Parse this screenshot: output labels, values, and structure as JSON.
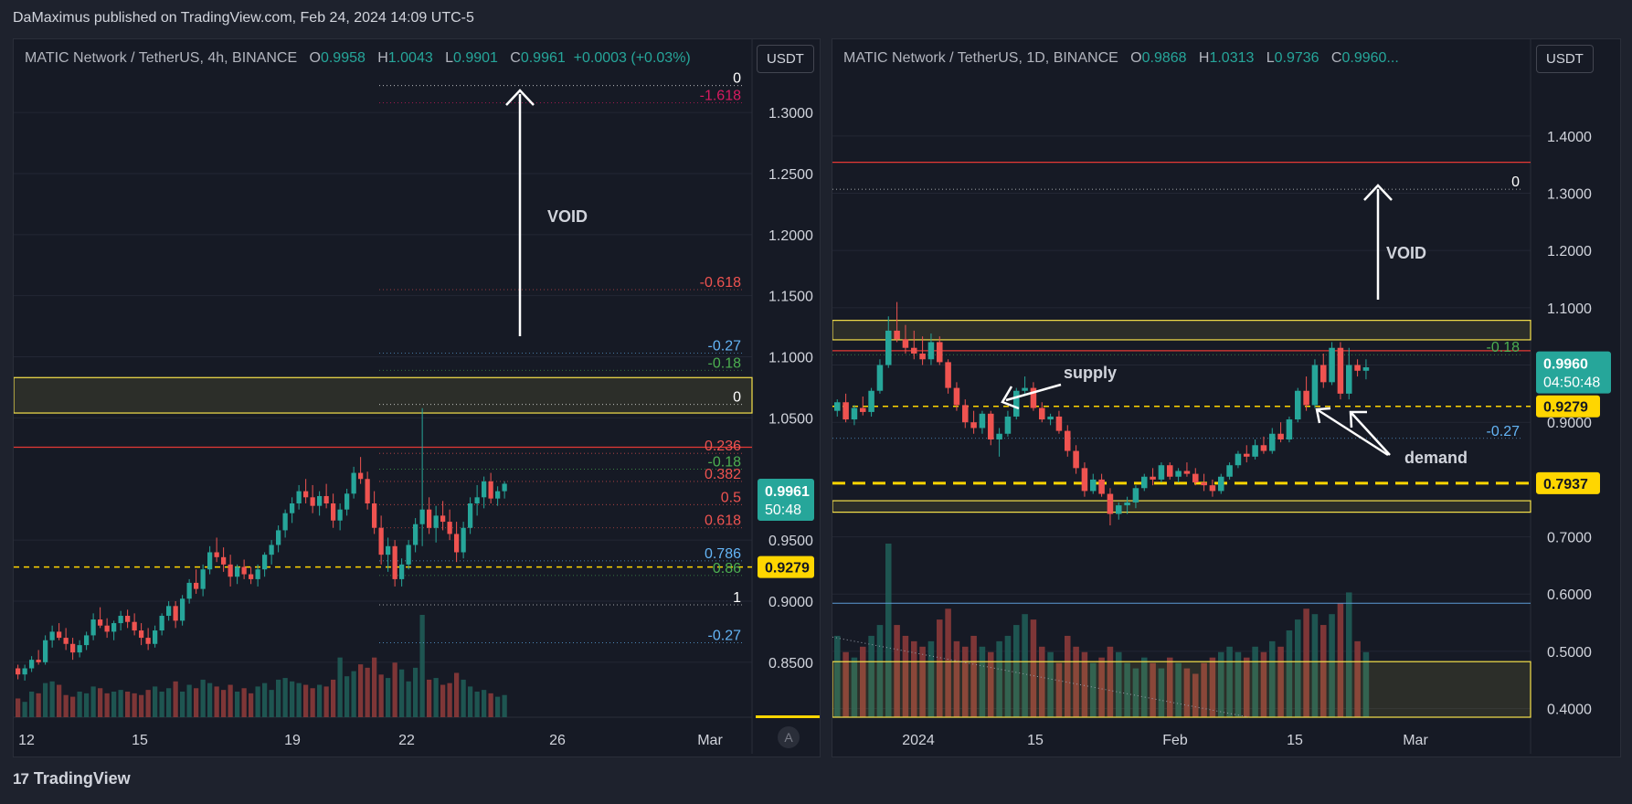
{
  "header": {
    "publisher": "DaMaximus published on TradingView.com, Feb 24, 2024 14:09 UTC-5"
  },
  "footer": {
    "brand": "TradingView",
    "logo_icon": "tradingview-logo-icon"
  },
  "colors": {
    "up": "#26a69a",
    "down": "#ef5350",
    "zone_line": "#f7e24b",
    "resistance": "#e53935",
    "dashed": "#ffd600",
    "bg": "#161a25"
  },
  "left": {
    "legend": {
      "symbol": "MATIC Network / TetherUS, 4h, BINANCE",
      "o_label": "O",
      "o": "0.9958",
      "h_label": "H",
      "h": "1.0043",
      "l_label": "L",
      "l": "0.9901",
      "c_label": "C",
      "c": "0.9961",
      "change": "+0.0003 (+0.03%)"
    },
    "currency": "USDT",
    "auto_label": "A",
    "price_tag": "0.9961",
    "price_timer": "50:48",
    "dashed_tag": "0.9279",
    "void_label": "VOID",
    "x_labels": [
      "12",
      "15",
      "19",
      "22",
      "26",
      "Mar"
    ],
    "chart_data": {
      "type": "candlestick",
      "timeframe": "4h",
      "ylim": [
        0.805,
        1.33
      ],
      "y_ticks": [
        "1.3000",
        "1.2500",
        "1.2000",
        "1.1500",
        "1.1000",
        "1.0500",
        "0.9500",
        "0.9000",
        "0.8500"
      ],
      "fib_levels": [
        {
          "label": "-1.618",
          "value": 1.308,
          "color": "#d81b60"
        },
        {
          "label": "0",
          "value": 1.322,
          "color": "#ffffff"
        },
        {
          "label": "-0.618",
          "value": 1.155,
          "color": "#ef5350"
        },
        {
          "label": "-0.27",
          "value": 1.103,
          "color": "#64b5f6"
        },
        {
          "label": "-0.18",
          "value": 1.089,
          "color": "#4caf50"
        },
        {
          "label": "0",
          "value": 1.061,
          "color": "#ffffff"
        },
        {
          "label": "0.236",
          "value": 1.021,
          "color": "#ef5350"
        },
        {
          "label": "-0.18",
          "value": 1.008,
          "color": "#4caf50"
        },
        {
          "label": "0.382",
          "value": 0.998,
          "color": "#ef5350"
        },
        {
          "label": "0.5",
          "value": 0.979,
          "color": "#ef5350"
        },
        {
          "label": "0.618",
          "value": 0.96,
          "color": "#ef5350"
        },
        {
          "label": "0.786",
          "value": 0.933,
          "color": "#64b5f6"
        },
        {
          "label": "0.86",
          "value": 0.921,
          "color": "#4caf50"
        },
        {
          "label": "1",
          "value": 0.897,
          "color": "#ffffff"
        },
        {
          "label": "-0.27",
          "value": 0.866,
          "color": "#64b5f6"
        }
      ],
      "zone": [
        1.054,
        1.083
      ],
      "resistance": 1.026,
      "dashed": 0.9279,
      "candles": [
        [
          0.845,
          0.848,
          0.836,
          0.84
        ],
        [
          0.84,
          0.848,
          0.835,
          0.845
        ],
        [
          0.845,
          0.855,
          0.842,
          0.852
        ],
        [
          0.852,
          0.86,
          0.848,
          0.85
        ],
        [
          0.85,
          0.872,
          0.848,
          0.868
        ],
        [
          0.868,
          0.88,
          0.862,
          0.875
        ],
        [
          0.875,
          0.882,
          0.868,
          0.87
        ],
        [
          0.87,
          0.878,
          0.86,
          0.865
        ],
        [
          0.865,
          0.87,
          0.852,
          0.858
        ],
        [
          0.858,
          0.868,
          0.854,
          0.864
        ],
        [
          0.864,
          0.875,
          0.86,
          0.872
        ],
        [
          0.872,
          0.89,
          0.868,
          0.885
        ],
        [
          0.885,
          0.895,
          0.878,
          0.88
        ],
        [
          0.88,
          0.886,
          0.87,
          0.875
        ],
        [
          0.875,
          0.884,
          0.868,
          0.882
        ],
        [
          0.882,
          0.892,
          0.876,
          0.888
        ],
        [
          0.888,
          0.893,
          0.878,
          0.883
        ],
        [
          0.883,
          0.89,
          0.872,
          0.876
        ],
        [
          0.876,
          0.882,
          0.864,
          0.87
        ],
        [
          0.87,
          0.878,
          0.86,
          0.865
        ],
        [
          0.865,
          0.88,
          0.862,
          0.876
        ],
        [
          0.876,
          0.89,
          0.872,
          0.888
        ],
        [
          0.888,
          0.9,
          0.884,
          0.896
        ],
        [
          0.896,
          0.9,
          0.878,
          0.884
        ],
        [
          0.884,
          0.905,
          0.88,
          0.902
        ],
        [
          0.902,
          0.918,
          0.898,
          0.915
        ],
        [
          0.915,
          0.926,
          0.906,
          0.91
        ],
        [
          0.91,
          0.93,
          0.904,
          0.926
        ],
        [
          0.926,
          0.945,
          0.922,
          0.94
        ],
        [
          0.94,
          0.952,
          0.932,
          0.936
        ],
        [
          0.936,
          0.944,
          0.924,
          0.93
        ],
        [
          0.93,
          0.938,
          0.912,
          0.92
        ],
        [
          0.92,
          0.93,
          0.914,
          0.928
        ],
        [
          0.928,
          0.934,
          0.918,
          0.922
        ],
        [
          0.922,
          0.928,
          0.914,
          0.918
        ],
        [
          0.918,
          0.93,
          0.912,
          0.926
        ],
        [
          0.926,
          0.94,
          0.92,
          0.938
        ],
        [
          0.938,
          0.95,
          0.93,
          0.946
        ],
        [
          0.946,
          0.962,
          0.94,
          0.958
        ],
        [
          0.958,
          0.975,
          0.952,
          0.972
        ],
        [
          0.972,
          0.985,
          0.964,
          0.98
        ],
        [
          0.98,
          0.995,
          0.975,
          0.99
        ],
        [
          0.99,
          1.0,
          0.98,
          0.985
        ],
        [
          0.985,
          0.995,
          0.972,
          0.978
        ],
        [
          0.978,
          0.99,
          0.97,
          0.986
        ],
        [
          0.986,
          0.996,
          0.976,
          0.98
        ],
        [
          0.98,
          0.988,
          0.96,
          0.966
        ],
        [
          0.966,
          0.98,
          0.958,
          0.975
        ],
        [
          0.975,
          0.992,
          0.97,
          0.988
        ],
        [
          0.988,
          1.01,
          0.984,
          1.005
        ],
        [
          1.005,
          1.018,
          0.996,
          1.0
        ],
        [
          1.0,
          1.006,
          0.975,
          0.98
        ],
        [
          0.98,
          0.99,
          0.955,
          0.96
        ],
        [
          0.96,
          0.97,
          0.93,
          0.938
        ],
        [
          0.938,
          0.952,
          0.924,
          0.945
        ],
        [
          0.945,
          0.95,
          0.912,
          0.918
        ],
        [
          0.918,
          0.935,
          0.912,
          0.93
        ],
        [
          0.93,
          0.95,
          0.926,
          0.946
        ],
        [
          0.946,
          0.968,
          0.94,
          0.963
        ],
        [
          0.963,
          1.058,
          0.945,
          0.975
        ],
        [
          0.975,
          0.985,
          0.955,
          0.96
        ],
        [
          0.96,
          0.978,
          0.948,
          0.97
        ],
        [
          0.97,
          0.982,
          0.958,
          0.965
        ],
        [
          0.965,
          0.975,
          0.95,
          0.955
        ],
        [
          0.955,
          0.965,
          0.932,
          0.94
        ],
        [
          0.94,
          0.965,
          0.935,
          0.96
        ],
        [
          0.96,
          0.985,
          0.955,
          0.98
        ],
        [
          0.98,
          0.995,
          0.97,
          0.985
        ],
        [
          0.985,
          1.002,
          0.976,
          0.998
        ],
        [
          0.998,
          1.005,
          0.98,
          0.984
        ],
        [
          0.984,
          0.994,
          0.978,
          0.99
        ],
        [
          0.99,
          0.998,
          0.984,
          0.9961
        ]
      ],
      "volume": [
        22,
        18,
        30,
        28,
        40,
        42,
        38,
        26,
        24,
        30,
        28,
        36,
        34,
        28,
        30,
        32,
        30,
        28,
        26,
        32,
        36,
        30,
        34,
        42,
        30,
        38,
        34,
        44,
        40,
        36,
        32,
        38,
        30,
        34,
        28,
        36,
        40,
        32,
        44,
        46,
        42,
        40,
        38,
        34,
        38,
        36,
        44,
        70,
        48,
        54,
        62,
        58,
        70,
        50,
        46,
        64,
        56,
        42,
        58,
        120,
        44,
        46,
        38,
        40,
        52,
        44,
        36,
        30,
        32,
        28,
        24,
        26
      ]
    }
  },
  "right": {
    "legend": {
      "symbol": "MATIC Network / TetherUS, 1D, BINANCE",
      "o_label": "O",
      "o": "0.9868",
      "h_label": "H",
      "h": "1.0313",
      "l_label": "L",
      "l": "0.9736",
      "c_label": "C",
      "c": "0.9960..."
    },
    "currency": "USDT",
    "price_tag": "0.9960",
    "price_timer": "04:50:48",
    "dashed_tag": "0.9279",
    "yellow_tag": "0.7937",
    "void_label": "VOID",
    "supply_label": "supply",
    "demand_label": "demand",
    "x_labels": [
      "2024",
      "15",
      "Feb",
      "15",
      "Mar"
    ],
    "chart_data": {
      "type": "candlestick",
      "timeframe": "1D",
      "ylim": [
        0.385,
        1.505
      ],
      "y_ticks": [
        "1.4000",
        "1.3000",
        "1.2000",
        "1.1000",
        "1.0000",
        "0.9000",
        "0.7000",
        "0.6000",
        "0.5000",
        "0.4000"
      ],
      "fib_levels": [
        {
          "label": "0",
          "value": 1.307,
          "color": "#ffffff"
        },
        {
          "label": "-0.18",
          "value": 1.018,
          "color": "#4caf50"
        },
        {
          "label": "-0.27",
          "value": 0.872,
          "color": "#64b5f6"
        }
      ],
      "zone_top": [
        1.044,
        1.078
      ],
      "zone_bottom": [
        0.743,
        0.763
      ],
      "resistance_top": 1.354,
      "resistance": 1.025,
      "dashed": 0.9279,
      "dashed_heavy": 0.7937,
      "blue_line": 0.584,
      "volume_zone_top": 0.482,
      "candles": [
        [
          0.92,
          0.94,
          0.91,
          0.935
        ],
        [
          0.935,
          0.95,
          0.9,
          0.905
        ],
        [
          0.905,
          0.93,
          0.895,
          0.925
        ],
        [
          0.925,
          0.945,
          0.912,
          0.918
        ],
        [
          0.918,
          0.96,
          0.91,
          0.955
        ],
        [
          0.955,
          1.01,
          0.95,
          1.0
        ],
        [
          1.0,
          1.085,
          0.995,
          1.06
        ],
        [
          1.06,
          1.11,
          1.04,
          1.045
        ],
        [
          1.045,
          1.07,
          1.02,
          1.03
        ],
        [
          1.03,
          1.06,
          1.01,
          1.02
        ],
        [
          1.02,
          1.05,
          1.0,
          1.01
        ],
        [
          1.01,
          1.055,
          1.0,
          1.04
        ],
        [
          1.04,
          1.05,
          1.0,
          1.005
        ],
        [
          1.005,
          1.01,
          0.95,
          0.96
        ],
        [
          0.96,
          0.97,
          0.92,
          0.93
        ],
        [
          0.93,
          0.94,
          0.89,
          0.9
        ],
        [
          0.9,
          0.92,
          0.88,
          0.89
        ],
        [
          0.89,
          0.92,
          0.88,
          0.915
        ],
        [
          0.915,
          0.92,
          0.86,
          0.87
        ],
        [
          0.87,
          0.89,
          0.84,
          0.88
        ],
        [
          0.88,
          0.92,
          0.875,
          0.91
        ],
        [
          0.91,
          0.96,
          0.905,
          0.955
        ],
        [
          0.955,
          0.98,
          0.95,
          0.96
        ],
        [
          0.96,
          0.97,
          0.92,
          0.925
        ],
        [
          0.925,
          0.935,
          0.9,
          0.905
        ],
        [
          0.905,
          0.915,
          0.895,
          0.91
        ],
        [
          0.91,
          0.92,
          0.88,
          0.885
        ],
        [
          0.885,
          0.895,
          0.84,
          0.85
        ],
        [
          0.85,
          0.86,
          0.81,
          0.82
        ],
        [
          0.82,
          0.83,
          0.77,
          0.78
        ],
        [
          0.78,
          0.81,
          0.775,
          0.8
        ],
        [
          0.8,
          0.81,
          0.77,
          0.775
        ],
        [
          0.775,
          0.785,
          0.72,
          0.74
        ],
        [
          0.74,
          0.76,
          0.73,
          0.755
        ],
        [
          0.755,
          0.77,
          0.74,
          0.76
        ],
        [
          0.76,
          0.79,
          0.75,
          0.785
        ],
        [
          0.785,
          0.81,
          0.78,
          0.805
        ],
        [
          0.805,
          0.82,
          0.79,
          0.8
        ],
        [
          0.8,
          0.83,
          0.795,
          0.825
        ],
        [
          0.825,
          0.83,
          0.8,
          0.805
        ],
        [
          0.805,
          0.82,
          0.795,
          0.815
        ],
        [
          0.815,
          0.83,
          0.805,
          0.81
        ],
        [
          0.81,
          0.82,
          0.79,
          0.795
        ],
        [
          0.795,
          0.81,
          0.78,
          0.79
        ],
        [
          0.79,
          0.8,
          0.77,
          0.78
        ],
        [
          0.78,
          0.81,
          0.775,
          0.805
        ],
        [
          0.805,
          0.83,
          0.8,
          0.825
        ],
        [
          0.825,
          0.85,
          0.82,
          0.845
        ],
        [
          0.845,
          0.86,
          0.83,
          0.84
        ],
        [
          0.84,
          0.87,
          0.835,
          0.86
        ],
        [
          0.86,
          0.875,
          0.845,
          0.85
        ],
        [
          0.85,
          0.89,
          0.845,
          0.88
        ],
        [
          0.88,
          0.9,
          0.865,
          0.87
        ],
        [
          0.87,
          0.91,
          0.865,
          0.905
        ],
        [
          0.905,
          0.96,
          0.9,
          0.955
        ],
        [
          0.955,
          0.98,
          0.92,
          0.93
        ],
        [
          0.93,
          1.01,
          0.925,
          1.0
        ],
        [
          1.0,
          1.02,
          0.96,
          0.97
        ],
        [
          0.97,
          1.04,
          0.965,
          1.03
        ],
        [
          1.03,
          1.04,
          0.94,
          0.95
        ],
        [
          0.95,
          1.03,
          0.94,
          1.0
        ],
        [
          1.0,
          1.01,
          0.98,
          0.99
        ],
        [
          0.99,
          1.01,
          0.975,
          0.996
        ]
      ],
      "volume": [
        30,
        24,
        22,
        26,
        30,
        34,
        64,
        34,
        30,
        28,
        26,
        28,
        36,
        40,
        28,
        26,
        30,
        26,
        24,
        28,
        30,
        34,
        38,
        36,
        26,
        24,
        20,
        30,
        26,
        24,
        20,
        22,
        26,
        24,
        20,
        18,
        22,
        20,
        18,
        22,
        20,
        18,
        16,
        20,
        22,
        24,
        26,
        24,
        22,
        26,
        24,
        28,
        26,
        32,
        36,
        40,
        38,
        34,
        38,
        42,
        46,
        28,
        24
      ]
    }
  }
}
